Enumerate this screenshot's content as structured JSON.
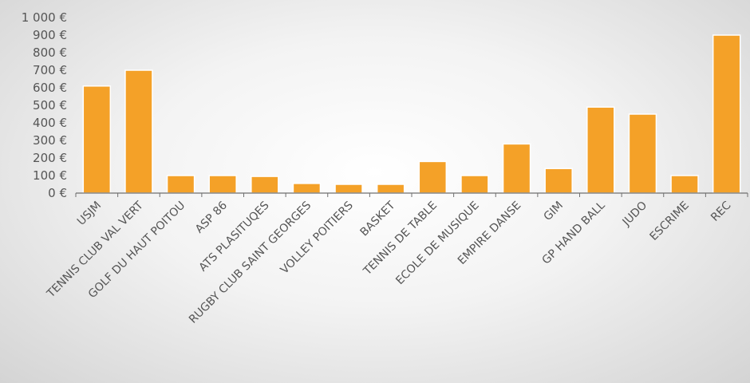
{
  "chart_data": {
    "type": "bar",
    "title": "",
    "xlabel": "",
    "ylabel": "",
    "categories": [
      "USJM",
      "TENNIS CLUB VAL VERT",
      "GOLF DU HAUT POITOU",
      "ASP 86",
      "ATS PLASITUQES",
      "RUGBY CLUB SAINT GEORGES",
      "VOLLEY POITIERS",
      "BASKET",
      "TENNIS DE TABLE",
      "ECOLE DE MUSIQUE",
      "EMPIRE DANSE",
      "GIM",
      "GP HAND BALL",
      "JUDO",
      "ESCRIME",
      "REC"
    ],
    "values": [
      610,
      700,
      100,
      100,
      95,
      55,
      50,
      50,
      180,
      100,
      280,
      140,
      490,
      450,
      100,
      900
    ],
    "ylim": [
      0,
      1000
    ],
    "yticks": [
      0,
      100,
      200,
      300,
      400,
      500,
      600,
      700,
      800,
      900,
      1000
    ],
    "ytick_labels": [
      "0 €",
      "100 €",
      "200 €",
      "300 €",
      "400 €",
      "500 €",
      "600 €",
      "700 €",
      "800 €",
      "900 €",
      "1 000 €"
    ],
    "grid": false,
    "legend": "none",
    "colors": {
      "bar": "#F4A128",
      "bar_edge": "#ffffff",
      "axis": "#6f6f6f",
      "text": "#555555"
    }
  }
}
